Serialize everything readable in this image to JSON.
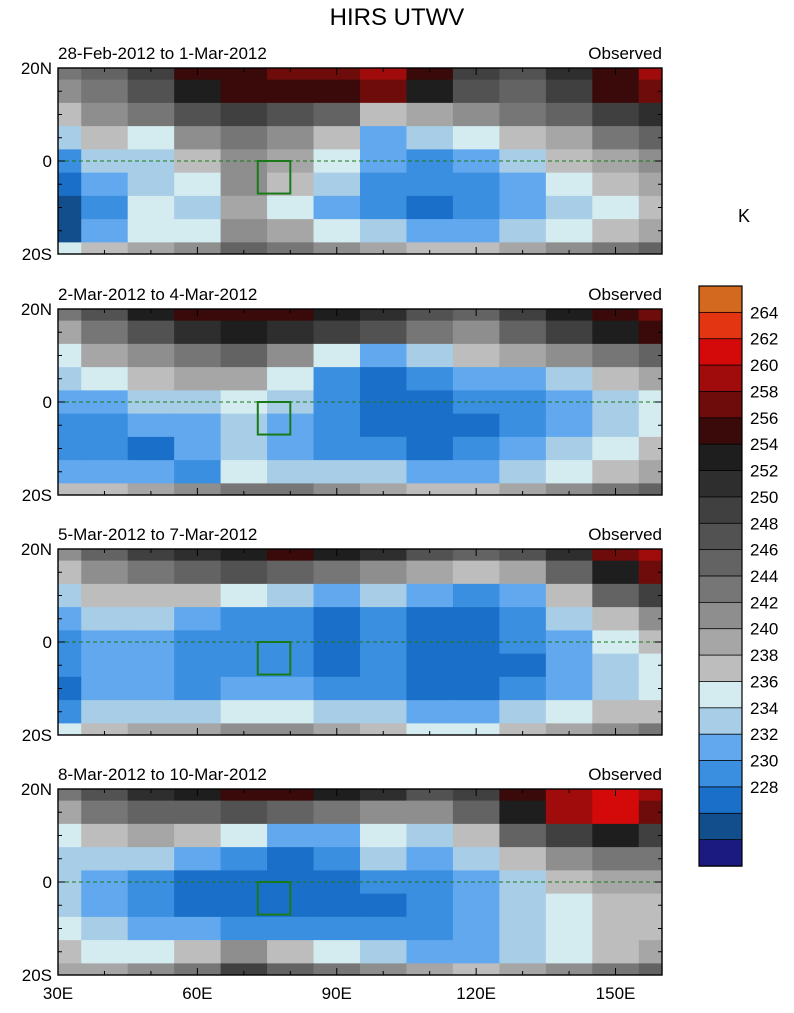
{
  "title": "HIRS UTWV",
  "unit_label": "K",
  "palette": [
    "#1a1a80",
    "#124d8c",
    "#1a70c8",
    "#3a8fe0",
    "#62a8ee",
    "#a8cde6",
    "#d4ebf0",
    "#bdbdbd",
    "#a6a6a6",
    "#8e8e8e",
    "#767676",
    "#636363",
    "#525252",
    "#404040",
    "#2e2e2e",
    "#1e1e1e",
    "#3a0a0a",
    "#6e0c0c",
    "#a00c0c",
    "#d40a0a",
    "#e43512",
    "#d2691e"
  ],
  "chart_data": [
    {
      "type": "heatmap",
      "period_label": "28-Feb-2012 to 1-Mar-2012",
      "source_label": "Observed",
      "xlim": [
        30,
        160
      ],
      "ylim": [
        -20,
        20
      ],
      "x_ticks": [
        "30E",
        "60E",
        "90E",
        "120E",
        "150E"
      ],
      "y_ticks": [
        "20N",
        "0",
        "20S"
      ],
      "columns": [
        "30E",
        "40E",
        "50E",
        "60E",
        "70E",
        "80E",
        "90E",
        "100E",
        "110E",
        "120E",
        "130E",
        "140E",
        "150E",
        "160E"
      ],
      "rows": [
        "20N",
        "15N",
        "10N",
        "5N",
        "0",
        "5S",
        "10S",
        "15S",
        "20S"
      ],
      "values": [
        [
          246,
          248,
          252,
          258,
          259,
          260,
          261,
          262,
          259,
          252,
          250,
          255,
          259,
          262
        ],
        [
          244,
          247,
          250,
          256,
          258,
          258,
          259,
          260,
          256,
          250,
          248,
          252,
          258,
          261
        ],
        [
          240,
          244,
          246,
          250,
          252,
          250,
          248,
          240,
          242,
          244,
          246,
          248,
          252,
          255
        ],
        [
          236,
          240,
          238,
          244,
          246,
          244,
          240,
          234,
          236,
          238,
          240,
          242,
          246,
          248
        ],
        [
          232,
          236,
          236,
          240,
          244,
          242,
          238,
          234,
          233,
          234,
          236,
          240,
          242,
          244
        ],
        [
          230,
          234,
          236,
          238,
          244,
          240,
          236,
          232,
          232,
          232,
          234,
          238,
          240,
          242
        ],
        [
          228,
          232,
          238,
          236,
          242,
          238,
          234,
          232,
          231,
          232,
          234,
          236,
          238,
          240
        ],
        [
          229,
          234,
          238,
          238,
          244,
          242,
          238,
          236,
          234,
          234,
          236,
          238,
          240,
          242
        ],
        [
          238,
          240,
          242,
          244,
          248,
          246,
          244,
          242,
          240,
          240,
          242,
          244,
          246,
          248
        ]
      ],
      "box": {
        "lon": [
          73,
          80
        ],
        "lat": [
          -7,
          0
        ]
      }
    },
    {
      "type": "heatmap",
      "period_label": "2-Mar-2012 to 4-Mar-2012",
      "source_label": "Observed",
      "xlim": [
        30,
        160
      ],
      "ylim": [
        -20,
        20
      ],
      "x_ticks": [
        "30E",
        "60E",
        "90E",
        "120E",
        "150E"
      ],
      "y_ticks": [
        "20N",
        "0",
        "20S"
      ],
      "columns": [
        "30E",
        "40E",
        "50E",
        "60E",
        "70E",
        "80E",
        "90E",
        "100E",
        "110E",
        "120E",
        "130E",
        "140E",
        "150E",
        "160E"
      ],
      "rows": [
        "20N",
        "15N",
        "10N",
        "5N",
        "0",
        "5S",
        "10S",
        "15S",
        "20S"
      ],
      "values": [
        [
          246,
          250,
          256,
          258,
          259,
          258,
          256,
          254,
          250,
          248,
          252,
          256,
          259,
          260
        ],
        [
          242,
          246,
          250,
          254,
          256,
          254,
          252,
          250,
          246,
          244,
          248,
          252,
          256,
          258
        ],
        [
          238,
          242,
          244,
          246,
          248,
          244,
          238,
          234,
          236,
          240,
          242,
          244,
          246,
          248
        ],
        [
          236,
          238,
          240,
          242,
          242,
          238,
          232,
          231,
          232,
          234,
          234,
          236,
          240,
          242
        ],
        [
          234,
          234,
          236,
          236,
          238,
          236,
          232,
          230,
          231,
          232,
          233,
          234,
          236,
          238
        ],
        [
          232,
          232,
          234,
          234,
          236,
          234,
          232,
          230,
          230,
          231,
          232,
          234,
          236,
          238
        ],
        [
          232,
          232,
          230,
          234,
          236,
          234,
          232,
          232,
          231,
          232,
          234,
          236,
          238,
          240
        ],
        [
          234,
          234,
          234,
          232,
          238,
          236,
          236,
          236,
          234,
          234,
          236,
          238,
          240,
          242
        ],
        [
          240,
          240,
          242,
          244,
          246,
          246,
          244,
          242,
          240,
          240,
          242,
          244,
          246,
          248
        ]
      ],
      "box": {
        "lon": [
          73,
          80
        ],
        "lat": [
          -7,
          0
        ]
      }
    },
    {
      "type": "heatmap",
      "period_label": "5-Mar-2012 to 7-Mar-2012",
      "source_label": "Observed",
      "xlim": [
        30,
        160
      ],
      "ylim": [
        -20,
        20
      ],
      "x_ticks": [
        "30E",
        "60E",
        "90E",
        "120E",
        "150E"
      ],
      "y_ticks": [
        "20N",
        "0",
        "20S"
      ],
      "columns": [
        "30E",
        "40E",
        "50E",
        "60E",
        "70E",
        "80E",
        "90E",
        "100E",
        "110E",
        "120E",
        "130E",
        "140E",
        "150E",
        "160E"
      ],
      "rows": [
        "20N",
        "15N",
        "10N",
        "5N",
        "0",
        "5S",
        "10S",
        "15S",
        "20S"
      ],
      "values": [
        [
          244,
          248,
          252,
          254,
          256,
          258,
          256,
          254,
          250,
          248,
          250,
          254,
          260,
          262
        ],
        [
          240,
          244,
          246,
          248,
          250,
          248,
          246,
          244,
          242,
          240,
          242,
          248,
          256,
          260
        ],
        [
          236,
          240,
          240,
          240,
          238,
          236,
          234,
          236,
          234,
          232,
          234,
          240,
          248,
          252
        ],
        [
          234,
          236,
          236,
          234,
          232,
          232,
          230,
          232,
          231,
          230,
          232,
          236,
          240,
          244
        ],
        [
          232,
          234,
          234,
          232,
          232,
          232,
          230,
          232,
          230,
          230,
          232,
          234,
          238,
          240
        ],
        [
          232,
          234,
          234,
          232,
          232,
          232,
          230,
          232,
          230,
          230,
          231,
          234,
          236,
          238
        ],
        [
          231,
          234,
          234,
          232,
          234,
          234,
          232,
          232,
          231,
          231,
          232,
          234,
          236,
          238
        ],
        [
          232,
          236,
          236,
          236,
          238,
          238,
          236,
          236,
          234,
          234,
          236,
          238,
          240,
          240
        ],
        [
          238,
          240,
          242,
          242,
          244,
          244,
          242,
          240,
          238,
          238,
          240,
          242,
          244,
          246
        ]
      ],
      "box": {
        "lon": [
          73,
          80
        ],
        "lat": [
          -7,
          0
        ]
      }
    },
    {
      "type": "heatmap",
      "period_label": "8-Mar-2012 to 10-Mar-2012",
      "source_label": "Observed",
      "xlim": [
        30,
        160
      ],
      "ylim": [
        -20,
        20
      ],
      "x_ticks": [
        "30E",
        "60E",
        "90E",
        "120E",
        "150E"
      ],
      "y_ticks": [
        "20N",
        "0",
        "20S"
      ],
      "columns": [
        "30E",
        "40E",
        "50E",
        "60E",
        "70E",
        "80E",
        "90E",
        "100E",
        "110E",
        "120E",
        "130E",
        "140E",
        "150E",
        "160E"
      ],
      "rows": [
        "20N",
        "15N",
        "10N",
        "5N",
        "0",
        "5S",
        "10S",
        "15S",
        "20S"
      ],
      "values": [
        [
          246,
          250,
          254,
          256,
          258,
          258,
          256,
          254,
          250,
          252,
          258,
          262,
          264,
          262
        ],
        [
          242,
          246,
          248,
          248,
          250,
          248,
          246,
          244,
          244,
          248,
          256,
          262,
          264,
          260
        ],
        [
          238,
          240,
          242,
          240,
          238,
          234,
          234,
          238,
          236,
          240,
          248,
          252,
          256,
          252
        ],
        [
          236,
          236,
          236,
          234,
          232,
          230,
          232,
          236,
          234,
          236,
          240,
          244,
          246,
          246
        ],
        [
          236,
          234,
          232,
          230,
          230,
          230,
          230,
          232,
          232,
          234,
          236,
          240,
          242,
          242
        ],
        [
          236,
          234,
          232,
          231,
          230,
          230,
          230,
          231,
          232,
          234,
          236,
          238,
          240,
          240
        ],
        [
          238,
          236,
          234,
          234,
          232,
          232,
          232,
          232,
          232,
          234,
          236,
          238,
          240,
          240
        ],
        [
          240,
          238,
          238,
          240,
          244,
          240,
          238,
          236,
          234,
          234,
          236,
          238,
          240,
          242
        ],
        [
          242,
          242,
          244,
          246,
          252,
          248,
          246,
          244,
          242,
          240,
          242,
          244,
          246,
          248
        ]
      ],
      "box": {
        "lon": [
          73,
          80
        ],
        "lat": [
          -7,
          0
        ]
      }
    },
    {
      "type": "colorbar",
      "unit": "K",
      "levels": [
        264,
        262,
        260,
        258,
        256,
        254,
        252,
        250,
        248,
        246,
        244,
        242,
        240,
        238,
        236,
        234,
        232,
        230,
        228
      ]
    }
  ]
}
